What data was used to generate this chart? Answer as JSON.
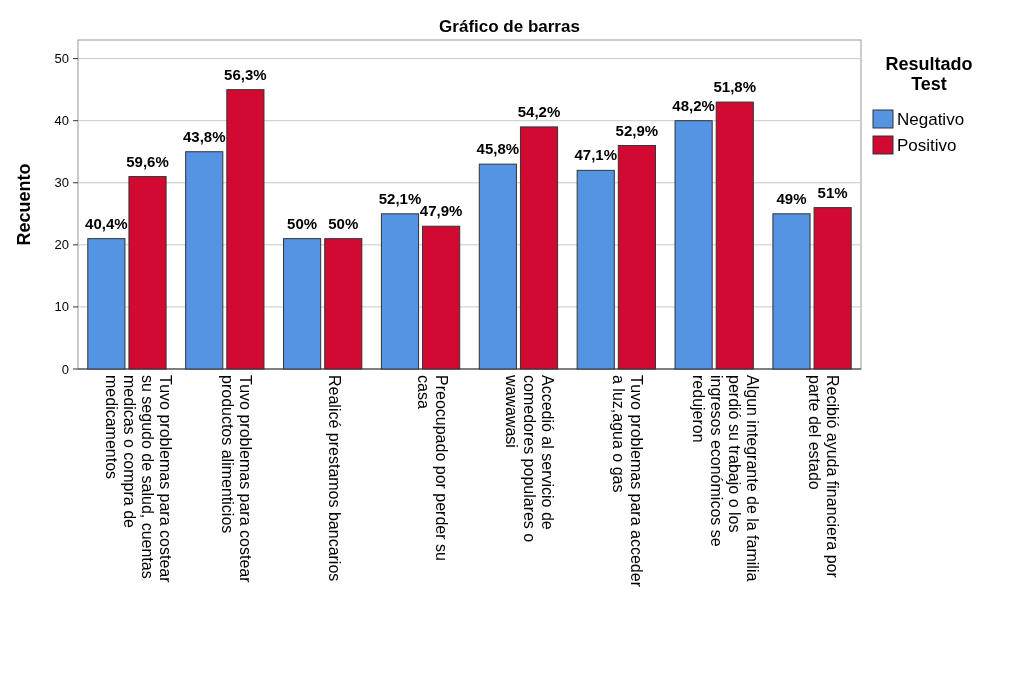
{
  "chart_data": {
    "type": "bar",
    "title": "Gráfico de barras",
    "ylabel": "Recuento",
    "legend_title": "Resultado Test",
    "legend": "right",
    "grid": "y",
    "categories": [
      "Tuvo problemas para costear su segudo de salud, cuentas medicas o compra de medicamentos",
      "Tuvo problemas para costear productos alimenticios",
      "Realicé prestamos bancarios",
      "Preocupado por perder su casa",
      "Accedió al servicio de comedores populares o wawawasi",
      "Tuvo problemas para acceder a luz,agua o gas",
      "Algun integrante de la familia perdió su trabajo o los ingresos económicos se redujeron",
      "Recibió ayuda financiera por parte del estado"
    ],
    "series": [
      {
        "name": "Negativo",
        "color": "#5593e3",
        "values": [
          21,
          35,
          21,
          25,
          33,
          32,
          40,
          25
        ]
      },
      {
        "name": "Positivo",
        "color": "#d20a32",
        "values": [
          31,
          45,
          21,
          23,
          39,
          36,
          43,
          26
        ]
      }
    ],
    "annotations": [
      "40,4%",
      "59,6%",
      "43,8%",
      "56,3%",
      "50%",
      "50%",
      "52,1%",
      "47,9%",
      "45,8%",
      "54,2%",
      "47,1%",
      "52,9%",
      "48,2%",
      "51,8%",
      "49%",
      "51%"
    ],
    "ylim": [
      0,
      53
    ],
    "yticks": [
      0,
      10,
      20,
      30,
      40,
      50
    ]
  }
}
